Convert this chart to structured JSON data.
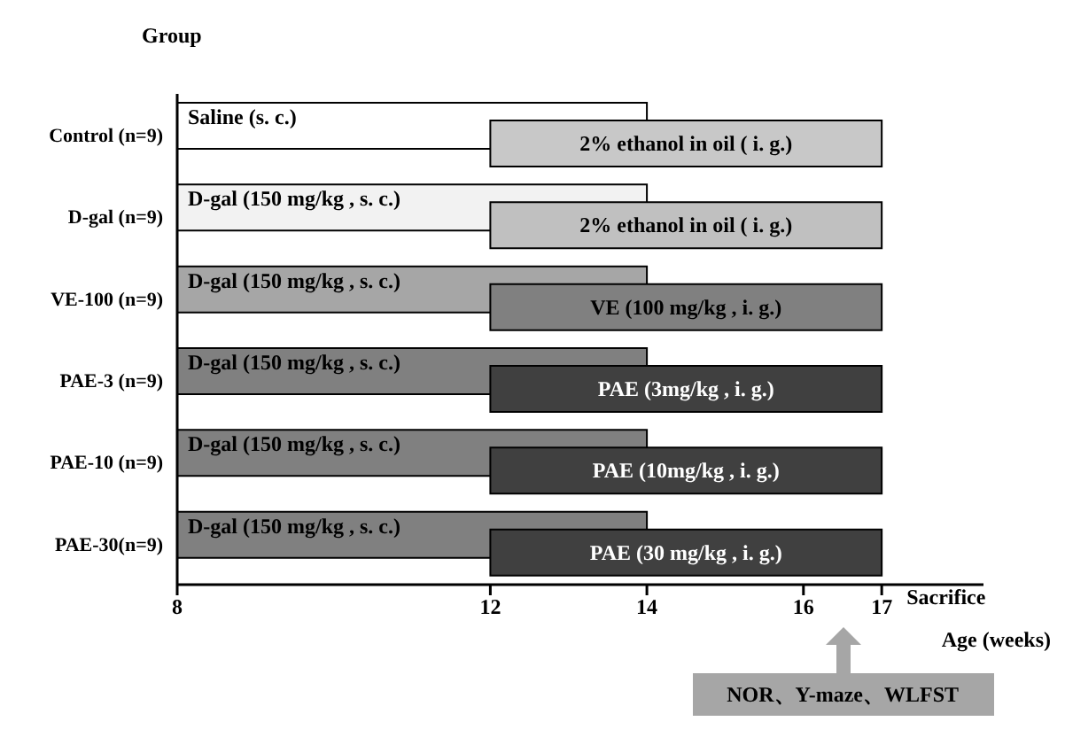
{
  "chart_data": {
    "type": "bar",
    "orientation": "horizontal",
    "ylabel": "Group",
    "xlabel": "Age (weeks)",
    "categories": [
      "Control (n=9)",
      "D-gal (n=9)",
      "VE-100 (n=9)",
      "PAE-3 (n=9)",
      "PAE-10 (n=9)",
      "PAE-30(n=9)"
    ],
    "series": [
      {
        "colors": [
          "#ffffff",
          "#f2f2f2",
          "#a6a6a6",
          "#808080",
          "#808080",
          "#808080"
        ],
        "base": [
          8,
          8,
          8,
          8,
          8,
          8
        ],
        "values": [
          6,
          6,
          6,
          6,
          6,
          6
        ]
      },
      {
        "colors": [
          "#c8c8c8",
          "#c0c0c0",
          "#808080",
          "#404040",
          "#404040",
          "#404040"
        ],
        "base": [
          12,
          12,
          12,
          12,
          12,
          12
        ],
        "values": [
          5,
          5,
          5,
          5,
          5,
          5
        ]
      }
    ],
    "xlim": [
      8,
      18.3
    ],
    "xticks": [
      8,
      12,
      14,
      16,
      17
    ],
    "annotations": [
      "Saline (s. c.)",
      "2% ethanol in oil ( i. g.)",
      "D-gal (150 mg/kg , s. c.)",
      "2% ethanol in oil ( i. g.)",
      "D-gal (150 mg/kg , s. c.)",
      "VE (100 mg/kg , i. g.)",
      "D-gal (150 mg/kg , s. c.)",
      "PAE (3mg/kg , i. g.)",
      "D-gal (150 mg/kg , s. c.)",
      "PAE (10mg/kg , i. g.)",
      "D-gal (150 mg/kg , s. c.)",
      "PAE (30 mg/kg , i. g.)",
      "Sacrifice",
      "NOR、Y-maze、WLFST"
    ]
  }
}
